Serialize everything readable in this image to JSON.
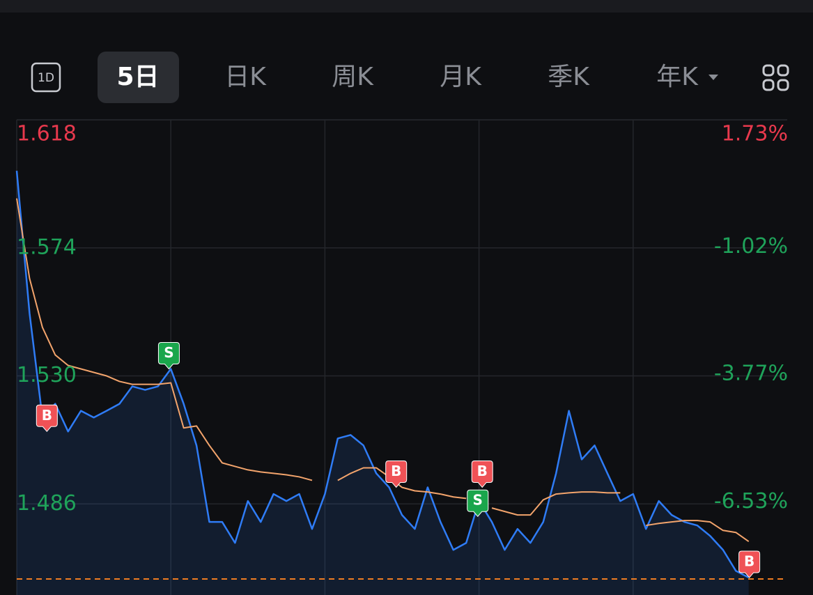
{
  "tabs": {
    "icon": "1D",
    "items": [
      "5日",
      "日K",
      "周K",
      "月K",
      "季K",
      "年K"
    ],
    "active": 0
  },
  "chart_data": {
    "type": "line",
    "x": [
      0,
      20,
      40,
      60,
      80,
      100,
      120,
      140,
      160,
      180,
      200,
      220,
      240,
      260,
      280,
      300,
      320,
      340,
      360,
      380,
      400,
      420,
      440,
      460,
      480,
      500,
      520,
      540,
      560,
      580,
      600,
      620,
      640,
      660,
      680,
      700,
      720,
      740,
      760,
      780,
      800,
      820,
      840,
      860,
      880,
      900,
      920,
      940,
      960,
      980,
      1000,
      1020,
      1040,
      1060,
      1080,
      1100,
      1120,
      1140
    ],
    "series": [
      {
        "color": "#2f7cf6",
        "values": [
          1.6005,
          1.5515,
          1.5157,
          1.5204,
          1.5109,
          1.518,
          1.5157,
          1.518,
          1.5204,
          1.5264,
          1.5252,
          1.5264,
          1.5324,
          1.5204,
          1.5061,
          1.4798,
          1.4798,
          1.4726,
          1.487,
          1.4798,
          1.4894,
          1.487,
          1.4894,
          1.4774,
          1.4894,
          1.5085,
          1.5097,
          1.5061,
          1.4965,
          1.4917,
          1.4822,
          1.4774,
          1.4917,
          1.4798,
          1.4702,
          1.4726,
          1.487,
          1.4798,
          1.4702,
          1.4774,
          1.4726,
          1.4798,
          1.4965,
          1.518,
          1.5013,
          1.5061,
          1.4965,
          1.487,
          1.4894,
          1.4774,
          1.487,
          1.4822,
          1.4798,
          1.4786,
          1.475,
          1.4702,
          1.463,
          1.4607
        ]
      },
      {
        "color": "#f3a46c",
        "values": [
          1.591,
          1.5635,
          1.5467,
          1.5372,
          1.5336,
          1.5324,
          1.5312,
          1.53,
          1.5281,
          1.5271,
          1.5271,
          1.5271,
          1.5276,
          1.5121,
          1.5128,
          1.5061,
          1.5001,
          1.4989,
          1.4977,
          1.497,
          1.4965,
          1.496,
          1.4953,
          1.4941,
          null,
          1.4941,
          1.4965,
          1.4984,
          1.4984,
          1.4953,
          1.4917,
          1.4905,
          1.4901,
          1.4894,
          1.4884,
          1.4879,
          null,
          1.4846,
          1.4834,
          1.4822,
          1.4822,
          1.4874,
          1.4894,
          1.4898,
          1.4901,
          1.4901,
          1.4898,
          1.4898,
          null,
          1.4786,
          1.4793,
          1.4798,
          1.4803,
          1.4803,
          1.4798,
          1.4769,
          1.4762,
          1.4731
        ]
      }
    ],
    "xlim": [
      0,
      1200
    ],
    "xticks": [
      240,
      480,
      720,
      960
    ],
    "ylim": [
      1.4547,
      1.618
    ],
    "yticks": [
      1.618,
      1.574,
      {
        "value": 1.53,
        "label": "1.530"
      },
      1.486
    ],
    "y2lim": [
      -8.54,
      1.73
    ],
    "y2ticks": [
      {
        "value": 1.73,
        "label": "1.73%"
      },
      {
        "value": -1.02,
        "label": "-1.02%"
      },
      {
        "value": -3.77,
        "label": "-3.77%"
      },
      {
        "value": -6.53,
        "label": "-6.53%"
      }
    ],
    "up_color": "#e8394d",
    "down_color": "#1fa35a",
    "grid": true,
    "reference_line": {
      "value": 1.4602,
      "color": "#f07d22"
    },
    "markers": [
      {
        "label": "B",
        "x": 47,
        "value": 1.5109,
        "color": "#ef5256"
      },
      {
        "label": "S",
        "x": 237,
        "value": 1.5324,
        "color": "#1aa64c"
      },
      {
        "label": "B",
        "x": 591,
        "value": 1.4917,
        "color": "#ef5256"
      },
      {
        "label": "B",
        "x": 725,
        "value": 1.4917,
        "color": "#ef5256"
      },
      {
        "label": "S",
        "x": 718,
        "value": 1.4817,
        "color": "#1aa64c"
      },
      {
        "label": "B",
        "x": 1141,
        "value": 1.4607,
        "color": "#ef5256"
      }
    ]
  }
}
